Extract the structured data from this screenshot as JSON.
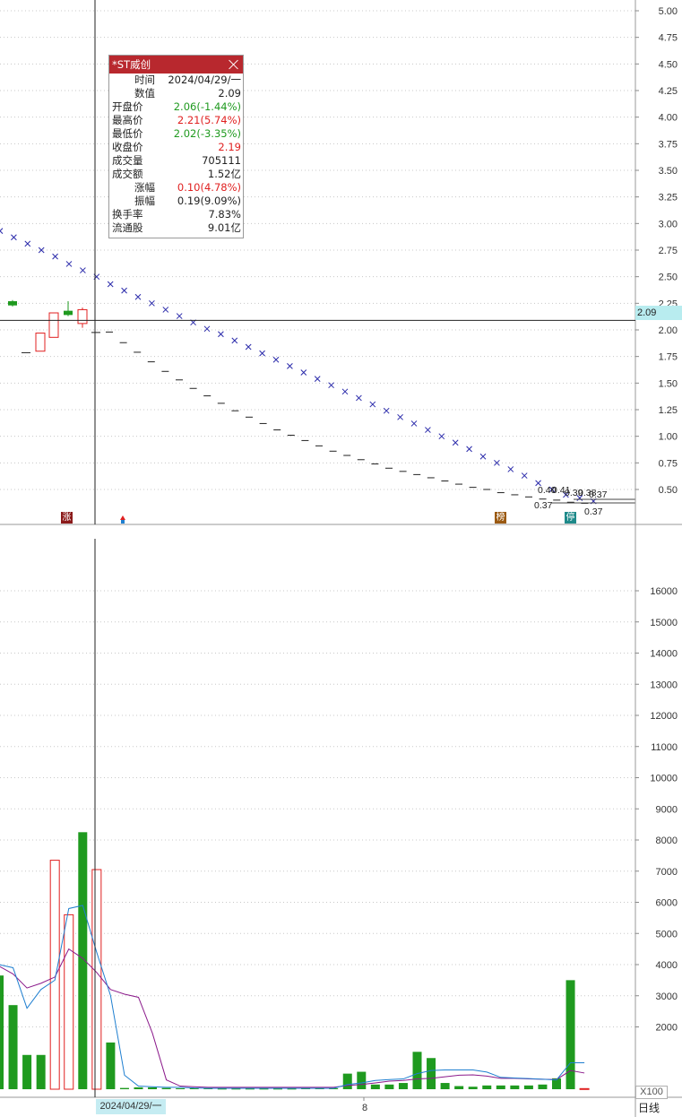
{
  "stock_name": "*ST威创",
  "tooltip": {
    "title": "*ST威创",
    "rows": [
      {
        "k": "时间",
        "v": "2024/04/29/一",
        "c": "#222222"
      },
      {
        "k": "数值",
        "v": "2.09",
        "c": "#222222"
      },
      {
        "k": "开盘价",
        "v": "2.06(-1.44%)",
        "c": "#1f9a1f"
      },
      {
        "k": "最高价",
        "v": "2.21(5.74%)",
        "c": "#e02020"
      },
      {
        "k": "最低价",
        "v": "2.02(-3.35%)",
        "c": "#1f9a1f"
      },
      {
        "k": "收盘价",
        "v": "2.19",
        "c": "#e02020"
      },
      {
        "k": "成交量",
        "v": "705111",
        "c": "#222222"
      },
      {
        "k": "成交额",
        "v": "1.52亿",
        "c": "#222222"
      },
      {
        "k": "涨幅",
        "v": "0.10(4.78%)",
        "c": "#e02020"
      },
      {
        "k": "振幅",
        "v": "0.19(9.09%)",
        "c": "#222222"
      },
      {
        "k": "换手率",
        "v": "7.83%",
        "c": "#222222"
      },
      {
        "k": "流通股",
        "v": "9.01亿",
        "c": "#222222"
      }
    ]
  },
  "current_value_label": "2.09",
  "volume_unit": "X100",
  "date_label": "2024/04/29/一",
  "x_tick": "8",
  "period_tab": "日线",
  "badges": [
    {
      "text": "涨",
      "color": "#8b1a1a"
    },
    {
      "text": "榜",
      "color": "#9b5a12"
    },
    {
      "text": "停",
      "color": "#1f8a8a"
    }
  ],
  "annotations": [
    "0.40",
    "0.41",
    "0.39",
    "0.38",
    "0.37",
    "0.37",
    "0.37"
  ],
  "colors": {
    "up": "#e02020",
    "down": "#1f9a1f",
    "ma5": "#1f7fd0",
    "ma10": "#8b1a8b",
    "cross": "#2a2aaa",
    "dash": "#222222",
    "grid": "#c8c8c8"
  },
  "chart_data": [
    {
      "type": "candlestick",
      "y_ticks": [
        "5.00",
        "4.75",
        "4.50",
        "4.25",
        "4.00",
        "3.75",
        "3.50",
        "3.25",
        "3.00",
        "2.75",
        "2.50",
        "2.25",
        "2.00",
        "1.75",
        "1.50",
        "1.25",
        "1.00",
        "0.75",
        "0.50"
      ],
      "ylim": [
        0.37,
        5.05
      ],
      "candles": [
        {
          "open": 2.27,
          "close": 2.23,
          "high": 2.28,
          "low": 2.22
        },
        {
          "open": 1.79,
          "close": 1.79,
          "high": 1.79,
          "low": 1.79
        },
        {
          "open": 1.8,
          "close": 1.97,
          "high": 1.97,
          "low": 1.8
        },
        {
          "open": 1.93,
          "close": 2.16,
          "high": 2.16,
          "low": 1.93
        },
        {
          "open": 2.18,
          "close": 2.14,
          "high": 2.27,
          "low": 2.13
        },
        {
          "open": 2.06,
          "close": 2.19,
          "high": 2.21,
          "low": 2.02
        },
        {
          "open": 1.98,
          "close": 1.98,
          "high": 1.98,
          "low": 1.98
        }
      ],
      "limit_down_dashes": [
        1.98,
        1.88,
        1.79,
        1.7,
        1.61,
        1.53,
        1.45,
        1.38,
        1.31,
        1.24,
        1.18,
        1.12,
        1.06,
        1.01,
        0.96,
        0.91,
        0.86,
        0.82,
        0.78,
        0.74,
        0.7,
        0.67,
        0.64,
        0.61,
        0.58,
        0.55,
        0.52,
        0.5,
        0.47,
        0.45,
        0.43,
        0.41,
        0.4,
        0.38,
        0.37
      ],
      "cross_markers": [
        2.93,
        2.87,
        2.81,
        2.75,
        2.69,
        2.62,
        2.56,
        2.5,
        2.43,
        2.37,
        2.31,
        2.25,
        2.19,
        2.13,
        2.07,
        2.01,
        1.96,
        1.9,
        1.84,
        1.78,
        1.72,
        1.66,
        1.6,
        1.54,
        1.48,
        1.42,
        1.36,
        1.3,
        1.24,
        1.18,
        1.12,
        1.06,
        1.0,
        0.94,
        0.88,
        0.81,
        0.75,
        0.69,
        0.63,
        0.56,
        0.5,
        0.45,
        0.42,
        0.39
      ]
    },
    {
      "type": "bar",
      "y_ticks": [
        "16000",
        "15000",
        "14000",
        "13000",
        "12000",
        "11000",
        "10000",
        "9000",
        "8000",
        "7000",
        "6000",
        "5000",
        "4000",
        "3000",
        "2000"
      ],
      "ylim": [
        0,
        16900
      ],
      "bars": [
        {
          "v": 3650,
          "up": false
        },
        {
          "v": 2700,
          "up": false
        },
        {
          "v": 1100,
          "up": false
        },
        {
          "v": 1100,
          "up": false
        },
        {
          "v": 7350,
          "up": true
        },
        {
          "v": 5600,
          "up": true
        },
        {
          "v": 8250,
          "up": false
        },
        {
          "v": 7050,
          "up": true
        },
        {
          "v": 1500,
          "up": false
        },
        {
          "v": 40,
          "up": false
        },
        {
          "v": 60,
          "up": false
        },
        {
          "v": 60,
          "up": false
        },
        {
          "v": 40,
          "up": false
        },
        {
          "v": 30,
          "up": false
        },
        {
          "v": 30,
          "up": false
        },
        {
          "v": 30,
          "up": false
        },
        {
          "v": 20,
          "up": false
        },
        {
          "v": 20,
          "up": false
        },
        {
          "v": 20,
          "up": false
        },
        {
          "v": 20,
          "up": false
        },
        {
          "v": 20,
          "up": false
        },
        {
          "v": 20,
          "up": false
        },
        {
          "v": 30,
          "up": false
        },
        {
          "v": 30,
          "up": false
        },
        {
          "v": 30,
          "up": false
        },
        {
          "v": 500,
          "up": false
        },
        {
          "v": 560,
          "up": false
        },
        {
          "v": 150,
          "up": false
        },
        {
          "v": 150,
          "up": false
        },
        {
          "v": 200,
          "up": false
        },
        {
          "v": 1200,
          "up": false
        },
        {
          "v": 1000,
          "up": false
        },
        {
          "v": 200,
          "up": false
        },
        {
          "v": 100,
          "up": false
        },
        {
          "v": 80,
          "up": false
        },
        {
          "v": 120,
          "up": false
        },
        {
          "v": 120,
          "up": false
        },
        {
          "v": 120,
          "up": false
        },
        {
          "v": 120,
          "up": false
        },
        {
          "v": 150,
          "up": false
        },
        {
          "v": 350,
          "up": false
        },
        {
          "v": 3500,
          "up": false
        },
        {
          "v": 20,
          "up": true
        }
      ],
      "ma5": [
        4000,
        3900,
        2600,
        3200,
        3500,
        5800,
        5900,
        4400,
        3000,
        450,
        100,
        80,
        60,
        60,
        40,
        30,
        30,
        30,
        30,
        30,
        30,
        30,
        30,
        30,
        30,
        150,
        200,
        280,
        310,
        330,
        500,
        600,
        620,
        620,
        620,
        550,
        380,
        360,
        340,
        320,
        300,
        850,
        850
      ],
      "ma10": [
        3950,
        3700,
        3250,
        3400,
        3600,
        4500,
        4200,
        3750,
        3200,
        3050,
        2950,
        1800,
        300,
        100,
        80,
        60,
        60,
        60,
        60,
        60,
        60,
        60,
        60,
        60,
        60,
        120,
        150,
        200,
        260,
        280,
        330,
        350,
        400,
        450,
        460,
        420,
        350,
        350,
        330,
        320,
        310,
        600,
        520
      ]
    }
  ]
}
